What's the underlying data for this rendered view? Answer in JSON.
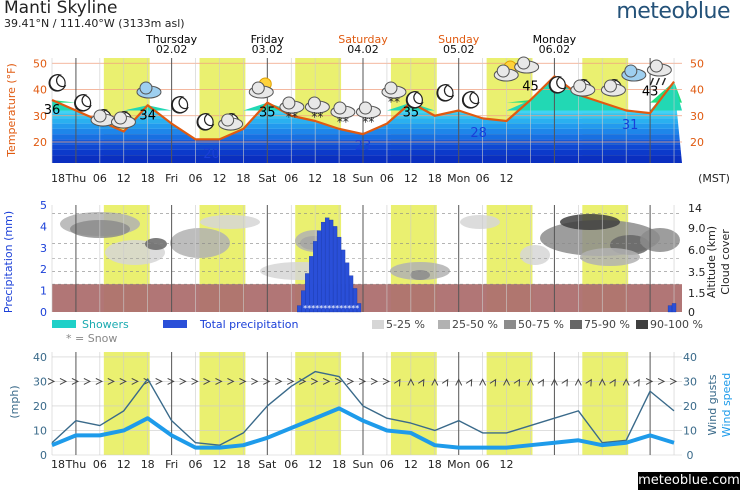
{
  "header": {
    "location": "Manti Skyline",
    "coords": "39.41°N / 111.40°W (3133m asl)",
    "brand": "meteoblue",
    "footer": "meteoblue.com"
  },
  "days": [
    {
      "name": "Thursday",
      "date": "02.02",
      "color": "#000000"
    },
    {
      "name": "Friday",
      "date": "03.02",
      "color": "#000000"
    },
    {
      "name": "Saturday",
      "date": "04.02",
      "color": "#e05a10"
    },
    {
      "name": "Sunday",
      "date": "05.02",
      "color": "#e05a10"
    },
    {
      "name": "Monday",
      "date": "06.02",
      "color": "#000000"
    }
  ],
  "time_axis": {
    "labels": [
      "18",
      "Thu",
      "06",
      "12",
      "18",
      "Fri",
      "06",
      "12",
      "18",
      "Sat",
      "06",
      "12",
      "18",
      "Sun",
      "06",
      "12",
      "18",
      "Mon",
      "06",
      "12"
    ],
    "timezone": "(MST)"
  },
  "colors": {
    "temperature": "#e05a10",
    "precip_axis": "#1a3fd8",
    "total_precip": "#2a4fd8",
    "showers": "#1fd0c8",
    "wind_speed": "#1e9bea",
    "wind_gusts": "#3a6a8a",
    "daylight": "#eaf070",
    "low_cloud_band": "#ad6f6f"
  },
  "temp_panel": {
    "y_label": "Temperature (°F)",
    "y_ticks": [
      "20",
      "30",
      "40",
      "50"
    ]
  },
  "precip_panel": {
    "y_label": "Precipitation (mm)",
    "y_ticks_left": [
      "0",
      "1",
      "2",
      "3",
      "4",
      "5"
    ],
    "y_ticks_right": [
      "0",
      "1.5",
      "3.5",
      "6.0",
      "9.0",
      "14"
    ],
    "right_label_1": "Altitude (km)",
    "right_label_2": "Cloud cover",
    "snow_marker": "**************"
  },
  "legend": {
    "showers": "Showers",
    "total_precipitation": "Total precipitation",
    "snow_note": "* = Snow",
    "cloud_cover": [
      {
        "label": "5-25 %",
        "color": "#d6d6d6"
      },
      {
        "label": "25-50 %",
        "color": "#b2b2b2"
      },
      {
        "label": "50-75 %",
        "color": "#8c8c8c"
      },
      {
        "label": "75-90 %",
        "color": "#666666"
      },
      {
        "label": "90-100 %",
        "color": "#3f3f3f"
      }
    ]
  },
  "wind_panel": {
    "y_label": "(mph)",
    "y_ticks": [
      "0",
      "10",
      "20",
      "30",
      "40"
    ],
    "right_label_1": "Wind gusts",
    "right_label_2": "Wind speed"
  },
  "chart_data": [
    {
      "type": "line",
      "title": "Temperature (°F)",
      "x_unit": "hours from Wed 18:00 MST",
      "ylim": [
        12,
        52
      ],
      "series": [
        {
          "name": "Temperature",
          "x": [
            0,
            6,
            12,
            18,
            24,
            30,
            36,
            42,
            48,
            54,
            60,
            66,
            72,
            78,
            84,
            90,
            96,
            102,
            108,
            114,
            120,
            126,
            132,
            138,
            144,
            150,
            156
          ],
          "y": [
            36,
            32,
            28,
            24,
            34,
            27,
            21,
            21,
            25,
            35,
            30,
            28,
            25,
            23,
            27,
            35,
            30,
            32,
            29,
            28,
            36,
            45,
            38,
            35,
            32,
            31,
            43
          ]
        }
      ],
      "labels": [
        {
          "x": 0,
          "value": "36",
          "color": "#000000"
        },
        {
          "x": 24,
          "value": "34",
          "color": "#000000"
        },
        {
          "x": 40,
          "value": "20",
          "color": "#1a3fd8"
        },
        {
          "x": 54,
          "value": "35",
          "color": "#000000"
        },
        {
          "x": 78,
          "value": "23",
          "color": "#1a3fd8"
        },
        {
          "x": 90,
          "value": "35",
          "color": "#000000"
        },
        {
          "x": 107,
          "value": "28",
          "color": "#1a3fd8"
        },
        {
          "x": 120,
          "value": "45",
          "color": "#000000"
        },
        {
          "x": 145,
          "value": "31",
          "color": "#1a3fd8"
        },
        {
          "x": 150,
          "value": "43",
          "color": "#000000"
        }
      ]
    },
    {
      "type": "bar",
      "title": "Precipitation (mm)",
      "x_unit": "hours from Wed 18:00 MST",
      "ylim": [
        0,
        5
      ],
      "series": [
        {
          "name": "Total precipitation",
          "x": [
            62,
            63,
            64,
            65,
            66,
            67,
            68,
            69,
            70,
            71,
            72,
            73,
            74,
            75,
            76,
            77,
            155,
            156
          ],
          "values": [
            0.3,
            1.0,
            1.8,
            2.6,
            3.3,
            3.8,
            4.2,
            4.4,
            4.3,
            4.0,
            3.5,
            2.9,
            2.3,
            1.7,
            1.1,
            0.4,
            0.3,
            0.4
          ]
        }
      ]
    },
    {
      "type": "line",
      "title": "Wind (mph)",
      "x_unit": "hours from Wed 18:00 MST",
      "ylim": [
        0,
        42
      ],
      "series": [
        {
          "name": "Wind gusts",
          "x": [
            0,
            6,
            12,
            18,
            24,
            30,
            36,
            42,
            48,
            54,
            60,
            66,
            72,
            78,
            84,
            90,
            96,
            102,
            108,
            114,
            120,
            126,
            132,
            138,
            144,
            150,
            156
          ],
          "y": [
            5,
            14,
            12,
            18,
            31,
            14,
            5,
            4,
            9,
            20,
            28,
            34,
            32,
            20,
            15,
            13,
            10,
            14,
            9,
            9,
            12,
            15,
            18,
            5,
            6,
            26,
            18
          ]
        },
        {
          "name": "Wind speed",
          "x": [
            0,
            6,
            12,
            18,
            24,
            30,
            36,
            42,
            48,
            54,
            60,
            66,
            72,
            78,
            84,
            90,
            96,
            102,
            108,
            114,
            120,
            126,
            132,
            138,
            144,
            150,
            156
          ],
          "y": [
            4,
            8,
            8,
            10,
            15,
            8,
            3,
            3,
            4,
            7,
            11,
            15,
            19,
            14,
            10,
            9,
            4,
            3,
            3,
            3,
            4,
            5,
            6,
            4,
            5,
            8,
            5
          ]
        }
      ]
    }
  ]
}
